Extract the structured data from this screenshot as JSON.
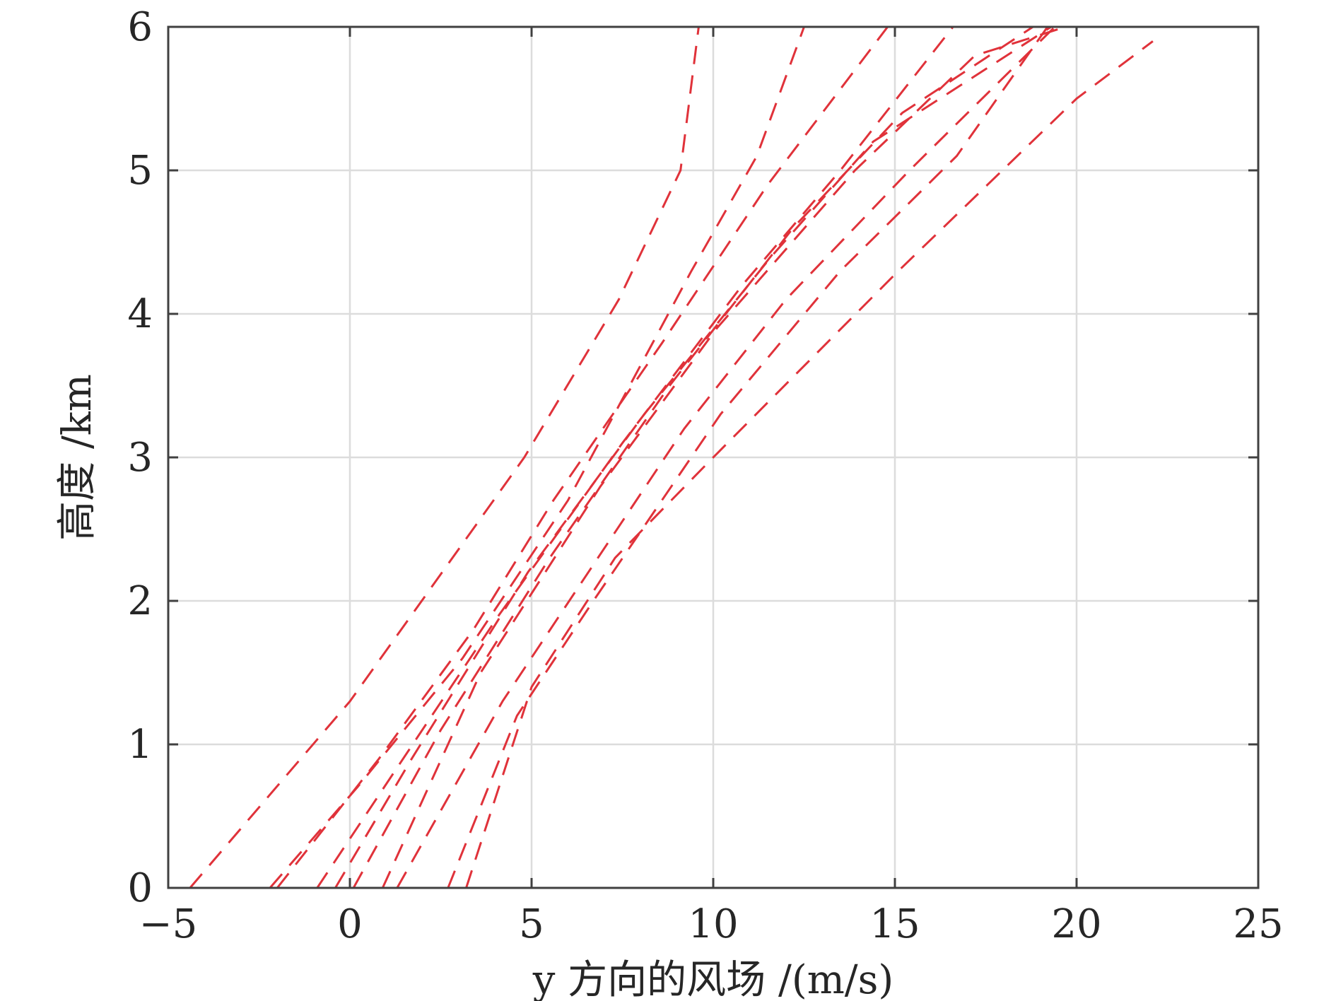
{
  "chart_data": {
    "type": "line",
    "title": "",
    "xlabel": "y 方向的风场 /(m/s)",
    "ylabel": "高度 /km",
    "xlim": [
      -5,
      25
    ],
    "ylim": [
      0,
      6
    ],
    "xticks": [
      -5,
      0,
      5,
      10,
      15,
      20,
      25
    ],
    "yticks": [
      0,
      1,
      2,
      3,
      4,
      5,
      6
    ],
    "xtick_labels": [
      "−5",
      "0",
      "5",
      "10",
      "15",
      "20",
      "25"
    ],
    "ytick_labels": [
      "0",
      "1",
      "2",
      "3",
      "4",
      "5",
      "6"
    ],
    "grid": true,
    "legend": "none",
    "line_style": "dashed",
    "line_color": "#e0323a",
    "grid_color": "#dcdcdc",
    "axis_color": "#404040",
    "series": [
      {
        "points": [
          [
            -4.4,
            0
          ],
          [
            0.0,
            1.3
          ],
          [
            4.8,
            3.0
          ],
          [
            7.4,
            4.1
          ],
          [
            9.1,
            5.0
          ],
          [
            9.6,
            6.0
          ]
        ]
      },
      {
        "points": [
          [
            -2.2,
            0
          ],
          [
            0.2,
            0.7
          ],
          [
            3.1,
            1.6
          ],
          [
            6.0,
            2.7
          ],
          [
            9.4,
            4.3
          ],
          [
            11.2,
            5.1
          ],
          [
            12.5,
            6.0
          ]
        ]
      },
      {
        "points": [
          [
            -2.0,
            0
          ],
          [
            0.8,
            0.9
          ],
          [
            3.4,
            1.8
          ],
          [
            5.6,
            2.7
          ],
          [
            8.6,
            3.8
          ],
          [
            11.5,
            4.9
          ],
          [
            14.8,
            6.0
          ]
        ]
      },
      {
        "points": [
          [
            -0.9,
            0
          ],
          [
            1.2,
            0.8
          ],
          [
            4.1,
            1.9
          ],
          [
            7.5,
            3.1
          ],
          [
            10.8,
            4.2
          ],
          [
            13.5,
            5.0
          ],
          [
            16.6,
            6.0
          ]
        ]
      },
      {
        "points": [
          [
            -0.4,
            0
          ],
          [
            1.7,
            0.9
          ],
          [
            4.9,
            2.2
          ],
          [
            8.1,
            3.3
          ],
          [
            11.6,
            4.4
          ],
          [
            14.4,
            5.2
          ],
          [
            19.3,
            6.0
          ]
        ]
      },
      {
        "points": [
          [
            0.1,
            0
          ],
          [
            2.5,
            1.1
          ],
          [
            5.5,
            2.3
          ],
          [
            8.8,
            3.5
          ],
          [
            12.2,
            4.6
          ],
          [
            15.2,
            5.4
          ],
          [
            18.8,
            6.0
          ]
        ]
      },
      {
        "points": [
          [
            0.9,
            0
          ],
          [
            3.6,
            1.5
          ],
          [
            6.9,
            2.8
          ],
          [
            10.1,
            3.9
          ],
          [
            13.9,
            5.0
          ],
          [
            17.2,
            5.8
          ],
          [
            19.7,
            6.0
          ]
        ]
      },
      {
        "points": [
          [
            1.3,
            0
          ],
          [
            4.2,
            1.3
          ],
          [
            6.3,
            2.1
          ],
          [
            9.2,
            3.2
          ],
          [
            12.0,
            4.1
          ],
          [
            15.4,
            5.0
          ],
          [
            19.4,
            6.0
          ]
        ]
      },
      {
        "points": [
          [
            2.7,
            0
          ],
          [
            4.6,
            1.2
          ],
          [
            6.7,
            2.0
          ],
          [
            10.2,
            3.3
          ],
          [
            13.5,
            4.3
          ],
          [
            16.7,
            5.1
          ],
          [
            19.2,
            6.0
          ]
        ]
      },
      {
        "points": [
          [
            3.2,
            0
          ],
          [
            5.0,
            1.4
          ],
          [
            7.3,
            2.3
          ],
          [
            10.0,
            3.0
          ],
          [
            15.1,
            4.3
          ],
          [
            20.0,
            5.5
          ],
          [
            22.1,
            5.9
          ]
        ]
      }
    ]
  }
}
